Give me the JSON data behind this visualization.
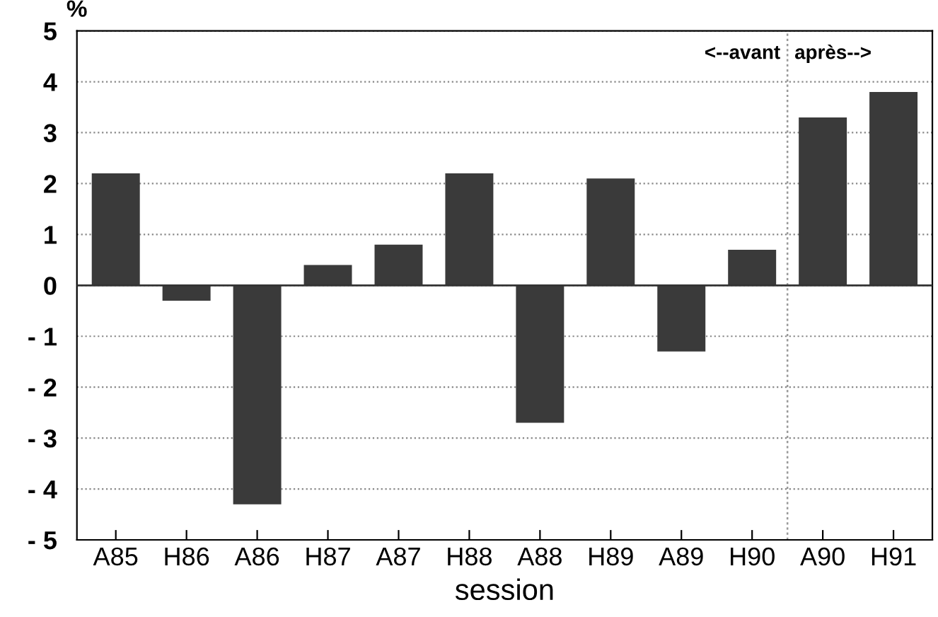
{
  "chart_data": {
    "type": "bar",
    "ylabel": "%",
    "xlabel": "session",
    "categories": [
      "A85",
      "H86",
      "A86",
      "H87",
      "A87",
      "H88",
      "A88",
      "H89",
      "A89",
      "H90",
      "A90",
      "H91"
    ],
    "values": [
      2.2,
      -0.3,
      -4.3,
      0.4,
      0.8,
      2.2,
      -2.7,
      2.1,
      -1.3,
      0.7,
      3.3,
      3.8
    ],
    "color": "#3a3a3a",
    "ylim": [
      -5,
      5
    ],
    "yticks": [
      {
        "value": -5,
        "label": "- 5"
      },
      {
        "value": -4,
        "label": "- 4"
      },
      {
        "value": -3,
        "label": "- 3"
      },
      {
        "value": -2,
        "label": "- 2"
      },
      {
        "value": -1,
        "label": "- 1"
      },
      0,
      1,
      2,
      3,
      4,
      5
    ],
    "grid": "y",
    "annotations": [
      "<--avant",
      "après-->"
    ]
  }
}
